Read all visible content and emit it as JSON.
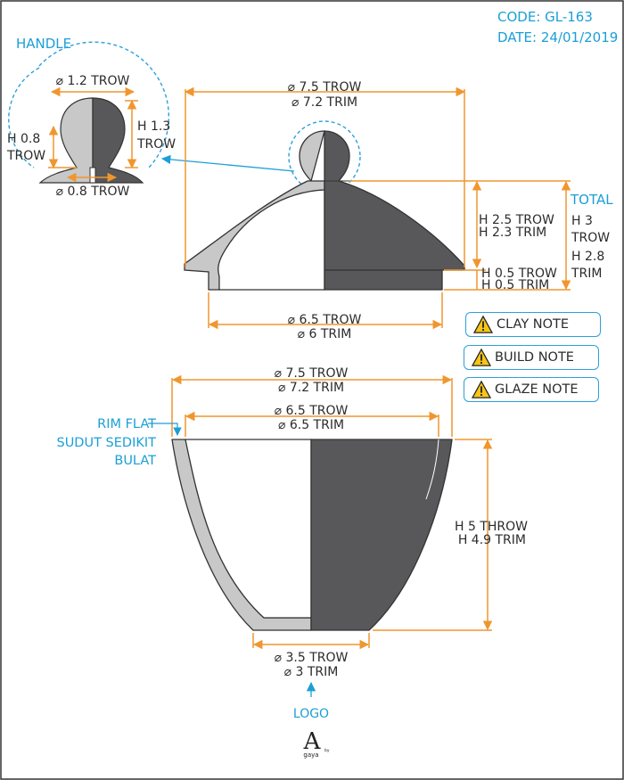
{
  "header": {
    "code": "CODE: GL-163",
    "date": "DATE: 24/01/2019"
  },
  "handle": {
    "title": "HANDLE",
    "dia_top": "⌀ 1.2 TROW",
    "height_right_1": "H 1.3",
    "height_right_2": "TROW",
    "height_left_1": "H 0.8",
    "height_left_2": "TROW",
    "dia_base": "⌀ 0.8 TROW"
  },
  "lid": {
    "dia_top_1": "⌀ 7.5 TROW",
    "dia_top_2": "⌀ 7.2 TRIM",
    "h_dome_1": "H 2.5 TROW",
    "h_dome_2": "H 2.3 TRIM",
    "h_flange_1": "H 0.5 TROW",
    "h_flange_2": "H 0.5 TRIM",
    "total_title": "TOTAL",
    "total_1": "H 3",
    "total_2": "TROW",
    "total_3": "H 2.8",
    "total_4": "TRIM",
    "dia_bottom_1": "⌀ 6.5 TROW",
    "dia_bottom_2": "⌀ 6 TRIM"
  },
  "notes": [
    "CLAY NOTE",
    "BUILD NOTE",
    "GLAZE NOTE"
  ],
  "bowl": {
    "dia_outer_1": "⌀ 7.5 TROW",
    "dia_outer_2": "⌀ 7.2 TRIM",
    "dia_inner_1": "⌀ 6.5 TROW",
    "dia_inner_2": "⌀ 6.5 TRIM",
    "rim_1": "RIM FLAT",
    "rim_2": "SUDUT SEDIKIT",
    "rim_3": "BULAT",
    "height_1": "H 5 THROW",
    "height_2": "H 4.9 TRIM",
    "foot_1": "⌀ 3.5 TROW",
    "foot_2": "⌀ 3 TRIM"
  },
  "logo": {
    "label": "LOGO",
    "mark": "A",
    "brand": "gaya",
    "sup": "by"
  },
  "colors": {
    "dim_line": "#f0962e",
    "accent": "#1b9fd6",
    "dark": "#58585a",
    "light": "#c8c8c8",
    "warning": "#f5c518"
  }
}
